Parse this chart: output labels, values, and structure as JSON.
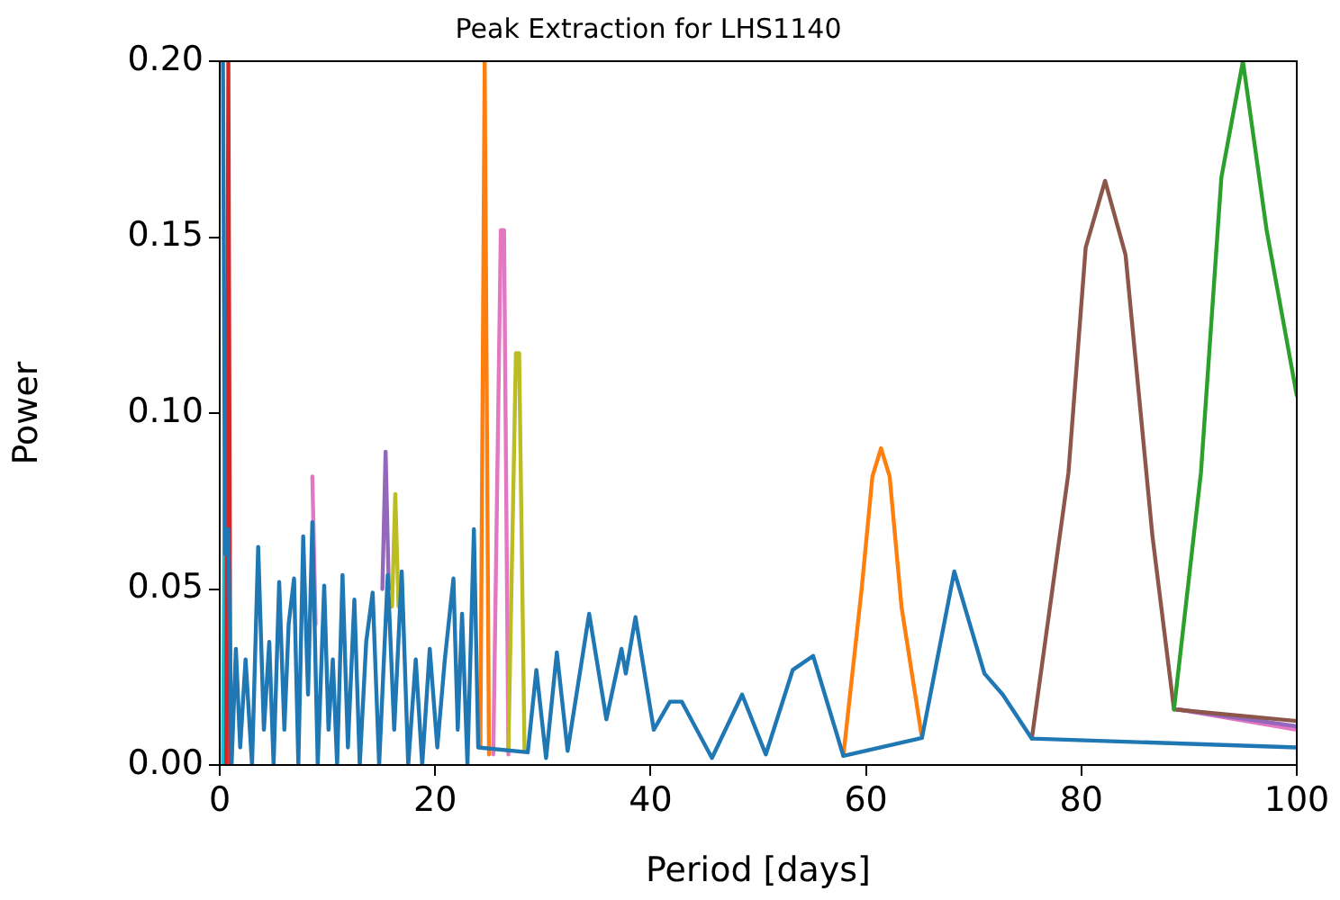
{
  "chart_data": {
    "type": "line",
    "title": "Peak Extraction for LHS1140",
    "xlabel": "Period [days]",
    "ylabel": "Power",
    "xlim": [
      0,
      100
    ],
    "xticks": [
      0,
      20,
      40,
      60,
      80,
      100
    ],
    "ylim": [
      0,
      0.2
    ],
    "yticks": [
      {
        "value": 0,
        "label": "0.00"
      },
      {
        "value": 0.05,
        "label": "0.05"
      },
      {
        "value": 0.1,
        "label": "0.10"
      },
      {
        "value": 0.15,
        "label": "0.15"
      },
      {
        "value": 0.2,
        "label": "0.20"
      }
    ],
    "grid": false,
    "legend": false,
    "marker": "none",
    "line_style": "solid",
    "series": [
      {
        "color": "#e377c2",
        "x": [
          8.6,
          8.9,
          12,
          25.4,
          26.1,
          26.4,
          26.8,
          50,
          89,
          100
        ],
        "values": [
          0.082,
          0.04,
          null,
          0.003,
          0.152,
          0.152,
          0.003,
          null,
          0.0158,
          0.01
        ]
      },
      {
        "color": "#bcbd22",
        "x": [
          16.0,
          16.3,
          16.6,
          20,
          26.8,
          27.5,
          27.8,
          28.3
        ],
        "values": [
          0.045,
          0.077,
          0.045,
          null,
          0.004,
          0.117,
          0.117,
          0.004
        ]
      },
      {
        "color": "#9467bd",
        "x": [
          15.1,
          15.4,
          15.7,
          50,
          89,
          100
        ],
        "values": [
          0.05,
          0.089,
          0.05,
          null,
          0.0158,
          0.011
        ]
      },
      {
        "color": "#8c564b",
        "x": [
          0.5,
          0.7,
          0.9,
          40,
          75.4,
          78.8,
          80.4,
          82.2,
          84.1,
          86.6,
          88.6,
          100
        ],
        "values": [
          0.0,
          0.083,
          0.0,
          null,
          0.0075,
          0.083,
          0.147,
          0.166,
          0.145,
          0.065,
          0.0158,
          0.0125
        ]
      },
      {
        "color": "#2ca02c",
        "x": [
          88.6,
          91.1,
          93.0,
          95.0,
          97.2,
          100
        ],
        "values": [
          0.0158,
          0.083,
          0.167,
          0.2,
          0.152,
          0.105
        ]
      },
      {
        "color": "#ff7f0e",
        "x": [
          24.2,
          24.6,
          25.0,
          40,
          57.9,
          59.6,
          60.6,
          61.4,
          62.2,
          63.3,
          65.2
        ],
        "values": [
          0.005,
          0.2,
          0.003,
          null,
          0.0026,
          0.05,
          0.082,
          0.09,
          0.082,
          0.045,
          0.0077
        ]
      },
      {
        "color": "#17becf",
        "x": [
          0.3,
          0.5,
          0.7
        ],
        "values": [
          0.0,
          0.095,
          0.0
        ]
      },
      {
        "color": "#d62728",
        "x": [
          0.6,
          0.8,
          1.0
        ],
        "values": [
          0.0,
          0.2,
          0.0
        ]
      },
      {
        "color": "#1f77b4",
        "x": [
          0.3,
          0.5,
          0.8,
          1.1,
          1.5,
          1.9,
          2.4,
          3.0,
          3.57,
          4.1,
          4.6,
          5.0,
          5.52,
          6.0,
          6.4,
          6.9,
          7.3,
          7.75,
          8.2,
          8.6,
          9.1,
          9.7,
          10.1,
          10.5,
          10.9,
          11.4,
          11.9,
          12.5,
          13.0,
          13.6,
          14.2,
          14.8,
          15.6,
          16.2,
          16.9,
          17.5,
          18.2,
          18.8,
          19.5,
          20.2,
          20.9,
          21.7,
          22.1,
          22.5,
          23.0,
          23.6,
          24.0,
          28.6,
          29.4,
          30.3,
          31.3,
          32.3,
          34.3,
          35.9,
          37.3,
          37.7,
          38.6,
          40.3,
          41.8,
          42.9,
          45.7,
          48.5,
          50.7,
          53.2,
          55.1,
          57.9,
          65.2,
          68.2,
          71.0,
          72.7,
          75.4,
          100
        ],
        "values": [
          0.2,
          0.06,
          0.067,
          0.0,
          0.033,
          0.005,
          0.03,
          0.0,
          0.062,
          0.01,
          0.035,
          0.0,
          0.052,
          0.01,
          0.04,
          0.053,
          0.0,
          0.065,
          0.02,
          0.069,
          0.0,
          0.051,
          0.01,
          0.03,
          0.0,
          0.054,
          0.005,
          0.047,
          0.0,
          0.035,
          0.049,
          0.0,
          0.054,
          0.01,
          0.055,
          0.0,
          0.03,
          0.0,
          0.033,
          0.005,
          0.03,
          0.053,
          0.01,
          0.043,
          0.0,
          0.067,
          0.005,
          0.0036,
          0.027,
          0.002,
          0.032,
          0.004,
          0.043,
          0.013,
          0.033,
          0.026,
          0.042,
          0.01,
          0.018,
          0.018,
          0.002,
          0.02,
          0.003,
          0.027,
          0.031,
          0.0026,
          0.0077,
          0.055,
          0.026,
          0.02,
          0.0075,
          0.005
        ]
      }
    ]
  }
}
